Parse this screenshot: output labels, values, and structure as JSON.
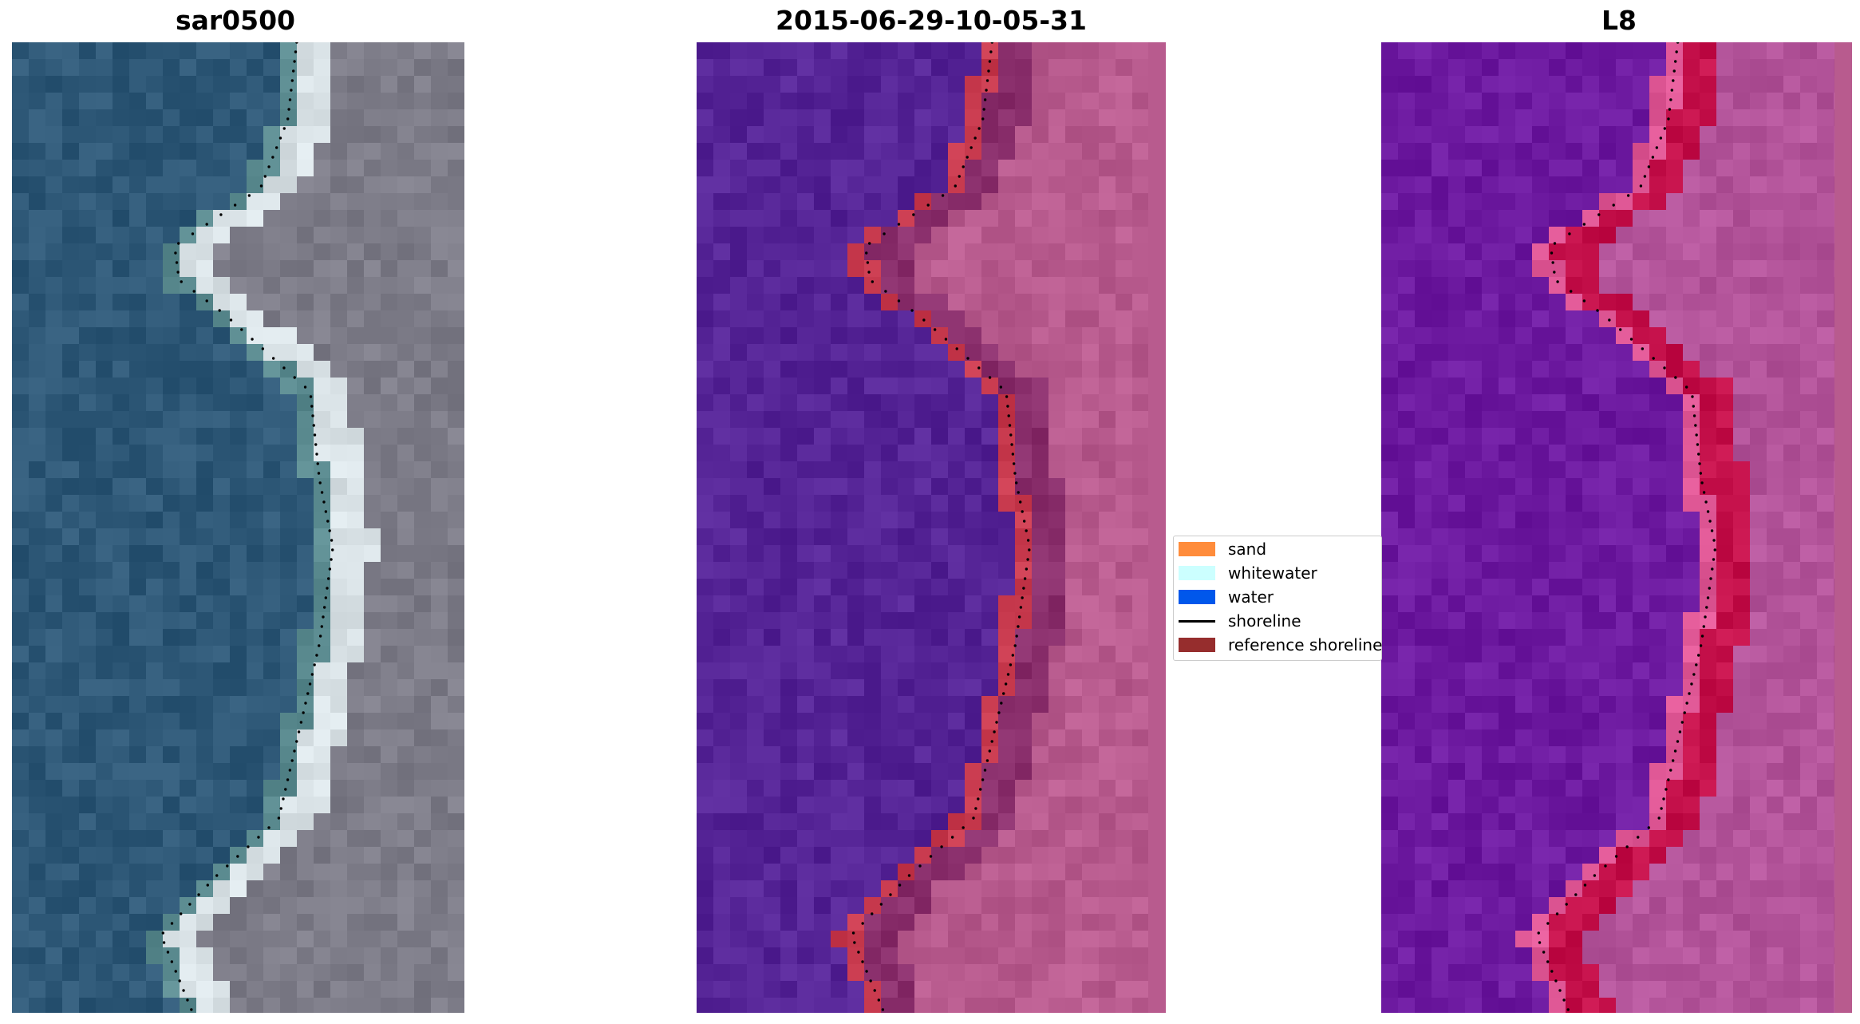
{
  "panels": [
    {
      "title": "sar0500",
      "palette": [
        "#2e5877",
        "#5a8a8f",
        "#d9e2e6",
        "#7d7c88"
      ]
    },
    {
      "title": "2015-06-29-10-05-31",
      "palette": [
        "#552496",
        "#c83a4e",
        "#8a2f6c",
        "#b85b8e"
      ]
    },
    {
      "title": "L8",
      "palette": [
        "#6d1aa0",
        "#e05896",
        "#c4104a",
        "#b3549a"
      ]
    }
  ],
  "legend": {
    "items": [
      {
        "label": "sand",
        "color": "#ff8c3b",
        "kind": "patch"
      },
      {
        "label": "whitewater",
        "color": "#ccffff",
        "kind": "patch"
      },
      {
        "label": "water",
        "color": "#0057eb",
        "kind": "patch"
      },
      {
        "label": "shoreline",
        "color": "#000000",
        "kind": "line"
      },
      {
        "label": "reference shoreline",
        "color": "#962d2d",
        "kind": "patch"
      }
    ]
  }
}
